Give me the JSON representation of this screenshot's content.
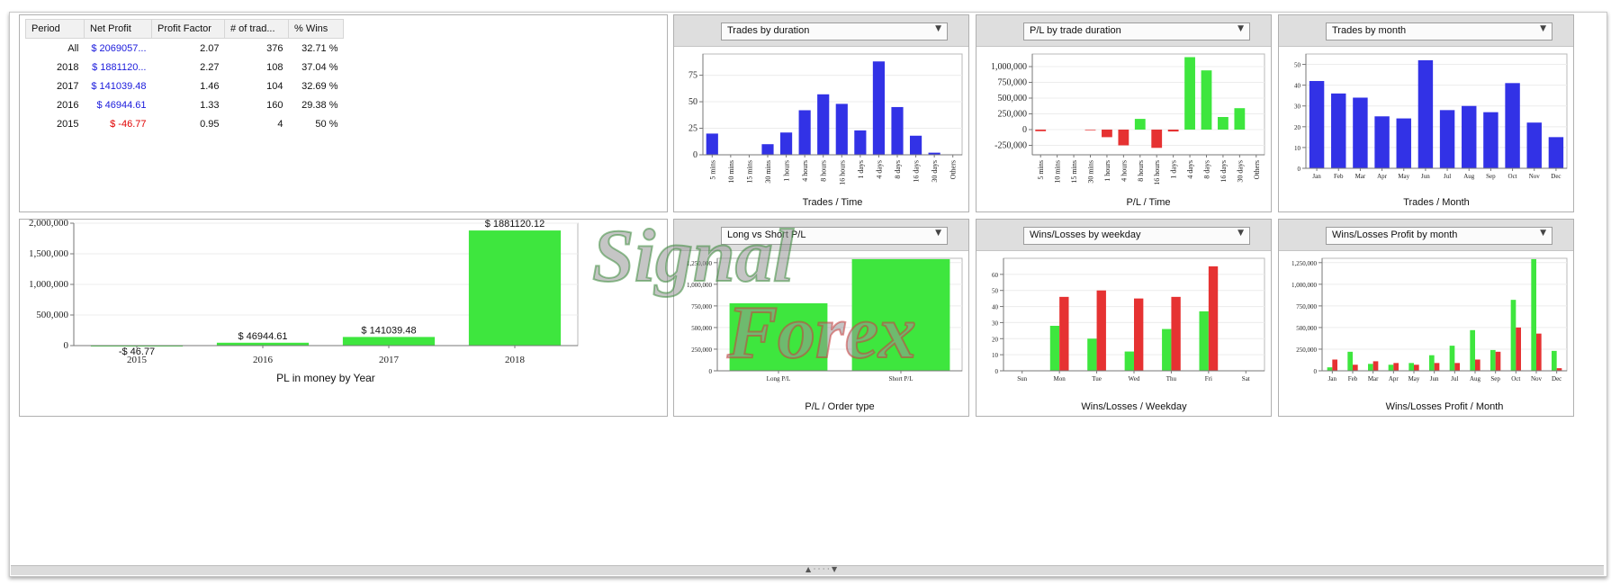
{
  "stats": {
    "headers": [
      "Period",
      "Net Profit",
      "Profit Factor",
      "# of trad...",
      "% Wins"
    ],
    "rows": [
      {
        "period": "All",
        "net": "$ 2069057...",
        "pf": "2.07",
        "trades": "376",
        "wins": "32.71 %",
        "color": "blue"
      },
      {
        "period": "2018",
        "net": "$ 1881120...",
        "pf": "2.27",
        "trades": "108",
        "wins": "37.04 %",
        "color": "blue"
      },
      {
        "period": "2017",
        "net": "$ 141039.48",
        "pf": "1.46",
        "trades": "104",
        "wins": "32.69 %",
        "color": "blue"
      },
      {
        "period": "2016",
        "net": "$ 46944.61",
        "pf": "1.33",
        "trades": "160",
        "wins": "29.38 %",
        "color": "blue"
      },
      {
        "period": "2015",
        "net": "$ -46.77",
        "pf": "0.95",
        "trades": "4",
        "wins": "50 %",
        "color": "red"
      }
    ]
  },
  "watermark": {
    "line1": "Signal",
    "line2": "Forex"
  },
  "ui": {
    "grip": "▲ · · · · ▼",
    "dropdown_arrow": "▼"
  },
  "chart_data": [
    {
      "id": "pl-by-year",
      "type": "bar",
      "title": "",
      "xlabel": "PL in money by Year",
      "categories": [
        "2015",
        "2016",
        "2017",
        "2018"
      ],
      "values": [
        -46.77,
        46944.61,
        141039.48,
        1881120.12
      ],
      "data_labels": [
        "-$ 46.77",
        "$ 46944.61",
        "$ 141039.48",
        "$ 1881120.12"
      ],
      "ylim": [
        0,
        2000000
      ],
      "yticks": [
        "0",
        "500,000",
        "1,000,000",
        "1,500,000",
        "2,000,000"
      ],
      "color": "#3ee63e"
    },
    {
      "id": "trades-by-duration",
      "type": "bar",
      "dropdown": "Trades by duration",
      "xlabel": "Trades / Time",
      "categories": [
        "5 mins",
        "10 mins",
        "15 mins",
        "30 mins",
        "1 hours",
        "4 hours",
        "8 hours",
        "16 hours",
        "1 days",
        "4 days",
        "8 days",
        "16 days",
        "30 days",
        "Others"
      ],
      "values": [
        20,
        0,
        0,
        10,
        21,
        42,
        57,
        48,
        23,
        88,
        45,
        18,
        2,
        0
      ],
      "ylim": [
        0,
        95
      ],
      "yticks": [
        "0",
        "25",
        "50",
        "75"
      ],
      "color": "#3232e6"
    },
    {
      "id": "pl-by-trade-duration",
      "type": "bar",
      "dropdown": "P/L by trade duration",
      "xlabel": "P/L / Time",
      "categories": [
        "5 mins",
        "10 mins",
        "15 mins",
        "30 mins",
        "1 hours",
        "4 hours",
        "8 hours",
        "16 hours",
        "1 days",
        "4 days",
        "8 days",
        "16 days",
        "30 days",
        "Others"
      ],
      "values": [
        -25000,
        0,
        0,
        -10000,
        -120000,
        -250000,
        170000,
        -290000,
        -30000,
        1150000,
        940000,
        200000,
        340000,
        0
      ],
      "ylim": [
        -400000,
        1200000
      ],
      "yticks": [
        "-250,000",
        "0",
        "250,000",
        "500,000",
        "750,000",
        "1,000,000"
      ],
      "pos_color": "#3ee63e",
      "neg_color": "#e63232"
    },
    {
      "id": "trades-by-month",
      "type": "bar",
      "dropdown": "Trades by month",
      "xlabel": "Trades / Month",
      "categories": [
        "Jan",
        "Feb",
        "Mar",
        "Apr",
        "May",
        "Jun",
        "Jul",
        "Aug",
        "Sep",
        "Oct",
        "Nov",
        "Dec"
      ],
      "values": [
        42,
        36,
        34,
        25,
        24,
        52,
        28,
        30,
        27,
        41,
        22,
        15
      ],
      "ylim": [
        0,
        55
      ],
      "yticks": [
        "0",
        "10",
        "20",
        "30",
        "40",
        "50"
      ],
      "color": "#3232e6"
    },
    {
      "id": "long-vs-short",
      "type": "bar",
      "dropdown": "Long vs Short P/L",
      "xlabel": "P/L / Order type",
      "categories": [
        "Long P/L",
        "Short P/L"
      ],
      "values": [
        780000,
        1290000
      ],
      "ylim": [
        0,
        1300000
      ],
      "yticks": [
        "0",
        "250,000",
        "500,000",
        "750,000",
        "1,000,000",
        "1,250,000"
      ],
      "color": "#3ee63e"
    },
    {
      "id": "wins-losses-weekday",
      "type": "bar",
      "dropdown": "Wins/Losses by weekday",
      "xlabel": "Wins/Losses / Weekday",
      "categories": [
        "Sun",
        "Mon",
        "Tue",
        "Wed",
        "Thu",
        "Fri",
        "Sat"
      ],
      "series": [
        {
          "values": [
            0,
            28,
            20,
            12,
            26,
            37,
            0
          ],
          "color": "#3ee63e"
        },
        {
          "values": [
            0,
            46,
            50,
            45,
            46,
            65,
            0
          ],
          "color": "#e63232"
        }
      ],
      "ylim": [
        0,
        70
      ],
      "yticks": [
        "0",
        "10",
        "20",
        "30",
        "40",
        "50",
        "60"
      ]
    },
    {
      "id": "wins-losses-profit-month",
      "type": "bar",
      "dropdown": "Wins/Losses Profit by month",
      "xlabel": "Wins/Losses Profit / Month",
      "categories": [
        "Jan",
        "Feb",
        "Mar",
        "Apr",
        "May",
        "Jun",
        "Jul",
        "Aug",
        "Sep",
        "Oct",
        "Nov",
        "Dec"
      ],
      "series": [
        {
          "values": [
            40000,
            220000,
            80000,
            70000,
            90000,
            180000,
            290000,
            470000,
            240000,
            820000,
            1290000,
            230000
          ],
          "color": "#3ee63e"
        },
        {
          "values": [
            130000,
            70000,
            110000,
            90000,
            70000,
            90000,
            90000,
            130000,
            220000,
            500000,
            430000,
            30000
          ],
          "color": "#e63232"
        }
      ],
      "ylim": [
        0,
        1300000
      ],
      "yticks": [
        "0",
        "250,000",
        "500,000",
        "750,000",
        "1,000,000",
        "1,250,000"
      ]
    }
  ]
}
